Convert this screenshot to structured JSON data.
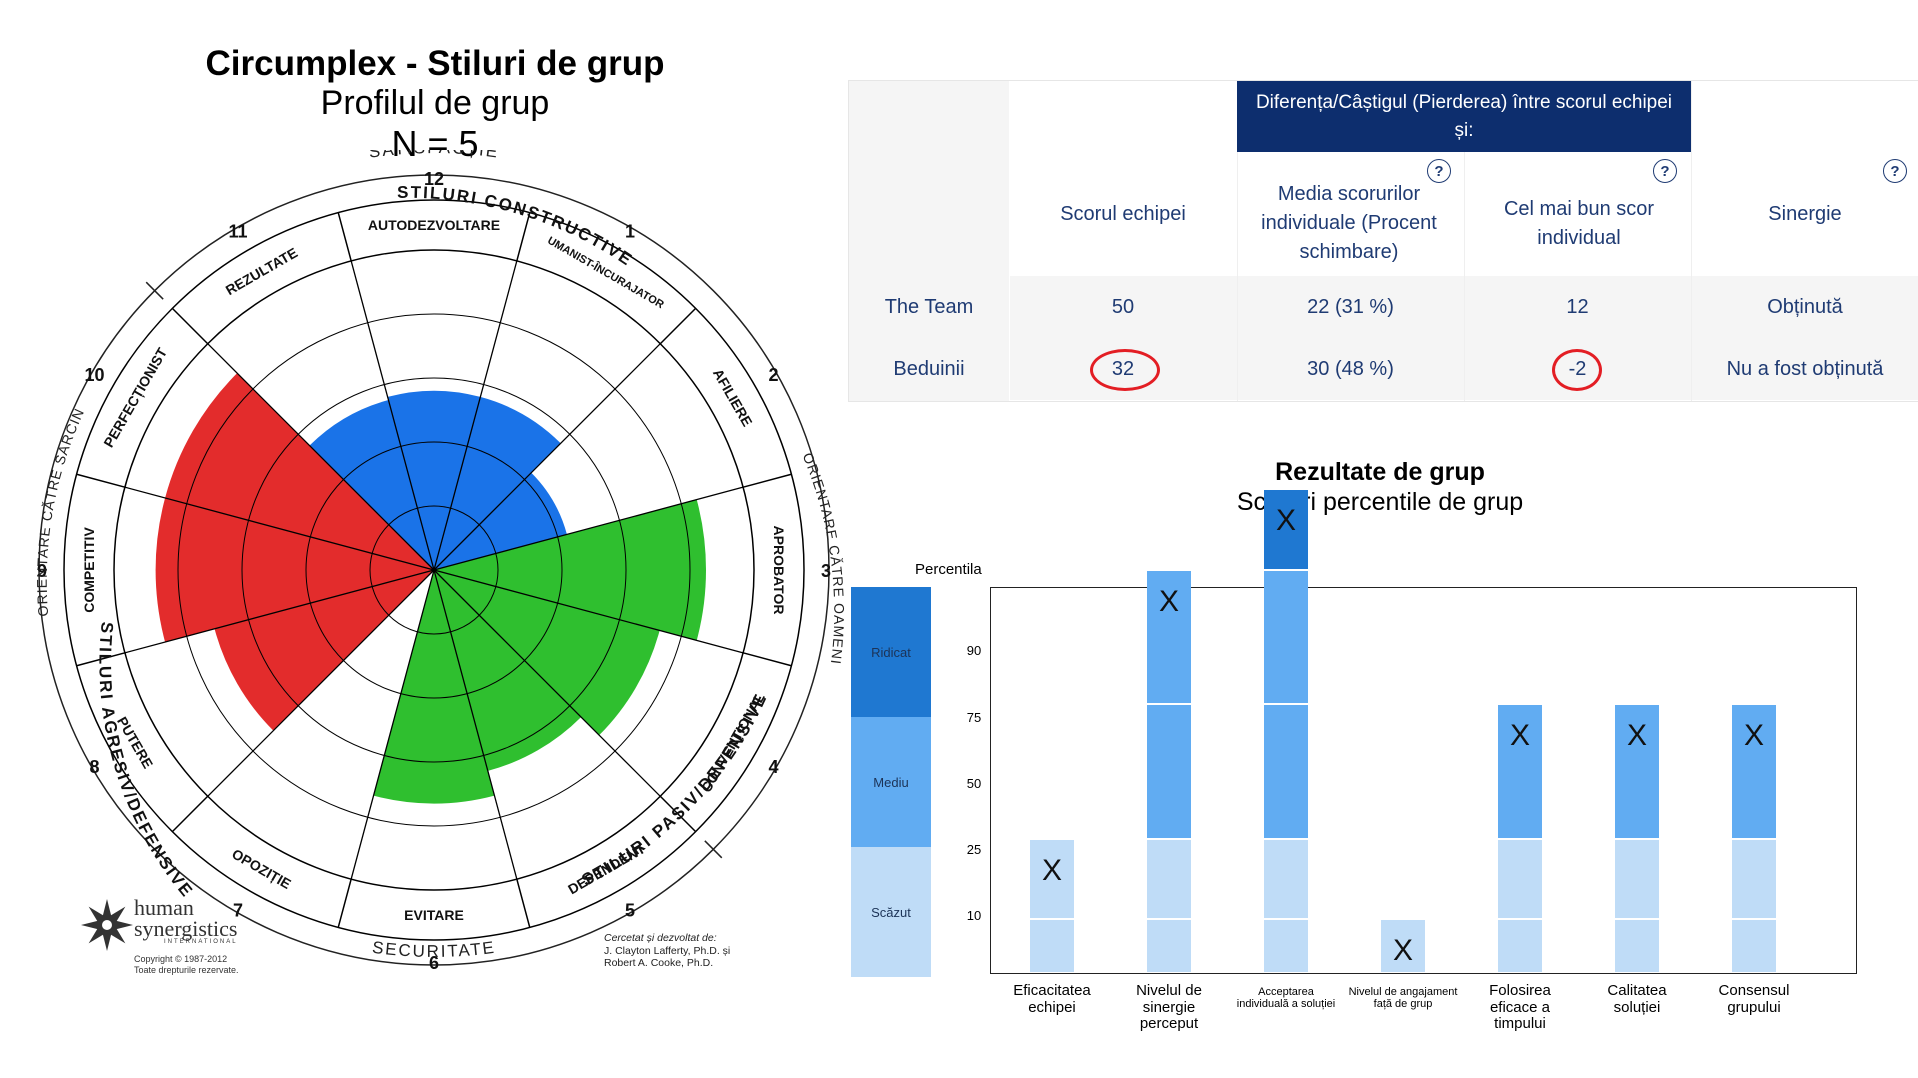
{
  "circumplex": {
    "title": "Circumplex - Stiluri de grup",
    "subtitle": "Profilul de grup",
    "n_label": "N = 5",
    "arc_labels": {
      "top": "SATISFACȚIE",
      "bottom": "SECURITATE",
      "left": "ORIENTARE CĂTRE SARCINI",
      "right": "ORIENTARE CĂTRE OAMENI",
      "constructive": "STILURI CONSTRUCTIVE",
      "passive": "STILURI PASIV/DEFENSIVE",
      "aggressive": "STILURI AGRESIV/DEFENSIVE"
    },
    "segments": [
      {
        "num": "1",
        "name": "UMANIST-ÎNCURAJATOR",
        "value": 56,
        "color": "#1a73e8"
      },
      {
        "num": "2",
        "name": "AFILIERE",
        "value": 43,
        "color": "#1a73e8"
      },
      {
        "num": "3",
        "name": "APROBATOR",
        "value": 85,
        "color": "#2fbf2f"
      },
      {
        "num": "4",
        "name": "CONVENȚIONAL",
        "value": 73,
        "color": "#2fbf2f"
      },
      {
        "num": "5",
        "name": "DEPENDENT",
        "value": 65,
        "color": "#2fbf2f"
      },
      {
        "num": "6",
        "name": "EVITARE",
        "value": 73,
        "color": "#2fbf2f"
      },
      {
        "num": "7",
        "name": "OPOZIȚIE",
        "value": 0,
        "color": "#e32c2c"
      },
      {
        "num": "8",
        "name": "PUTERE",
        "value": 71,
        "color": "#e32c2c"
      },
      {
        "num": "9",
        "name": "COMPETITIV",
        "value": 87,
        "color": "#e32c2c"
      },
      {
        "num": "10",
        "name": "PERFECȚIONIST",
        "value": 87,
        "color": "#e32c2c"
      },
      {
        "num": "11",
        "name": "REZULTATE",
        "value": 55,
        "color": "#1a73e8"
      },
      {
        "num": "12",
        "name": "AUTODEZVOLTARE",
        "value": 56,
        "color": "#1a73e8"
      }
    ],
    "logo_line1": "human",
    "logo_line2": "synergistics",
    "logo_line3": "INTERNATIONAL",
    "copyright1": "Copyright © 1987-2012",
    "copyright2": "Toate drepturile rezervate.",
    "credit1": "Cercetat și dezvoltat de:",
    "credit2": "J. Clayton Lafferty, Ph.D. și",
    "credit3": "Robert A. Cooke, Ph.D."
  },
  "table": {
    "group_header": "Diferența/Câștigul (Pierderea) între scorul echipei și:",
    "columns": [
      "Scorul echipei",
      "Media scorurilor individuale (Procent schimbare)",
      "Cel mai bun scor individual",
      "Sinergie"
    ],
    "help": "?",
    "rows": [
      {
        "name": "The Team",
        "team": "50",
        "avg": "22 (31 %)",
        "best": "12",
        "syn": "Obținută"
      },
      {
        "name": "Beduinii",
        "team": "32",
        "avg": "30 (48 %)",
        "best": "-2",
        "syn": "Nu a fost obținută"
      }
    ]
  },
  "chart_data": {
    "type": "bar",
    "title": "Rezultate de grup",
    "subtitle": "Scoruri percentile de grup",
    "ylabel": "Percentila",
    "ylim": [
      0,
      100
    ],
    "yticks": [
      "10",
      "25",
      "50",
      "75",
      "90"
    ],
    "bands": [
      {
        "label": "Ridicat",
        "from": 75,
        "to": 100,
        "color": "#1f78d1"
      },
      {
        "label": "Mediu",
        "from": 25,
        "to": 75,
        "color": "#61acf2"
      },
      {
        "label": "Scăzut",
        "from": 0,
        "to": 25,
        "color": "#bfdcf7"
      }
    ],
    "marker": "X",
    "categories": [
      "Eficacitatea echipei",
      "Nivelul de sinergie perceput",
      "Acceptarea individuală a soluției",
      "Nivelul de angajament față de grup",
      "Folosirea eficace a timpului",
      "Calitatea soluției",
      "Consensul grupului"
    ],
    "values": [
      25,
      75,
      90,
      10,
      50,
      50,
      50
    ]
  }
}
